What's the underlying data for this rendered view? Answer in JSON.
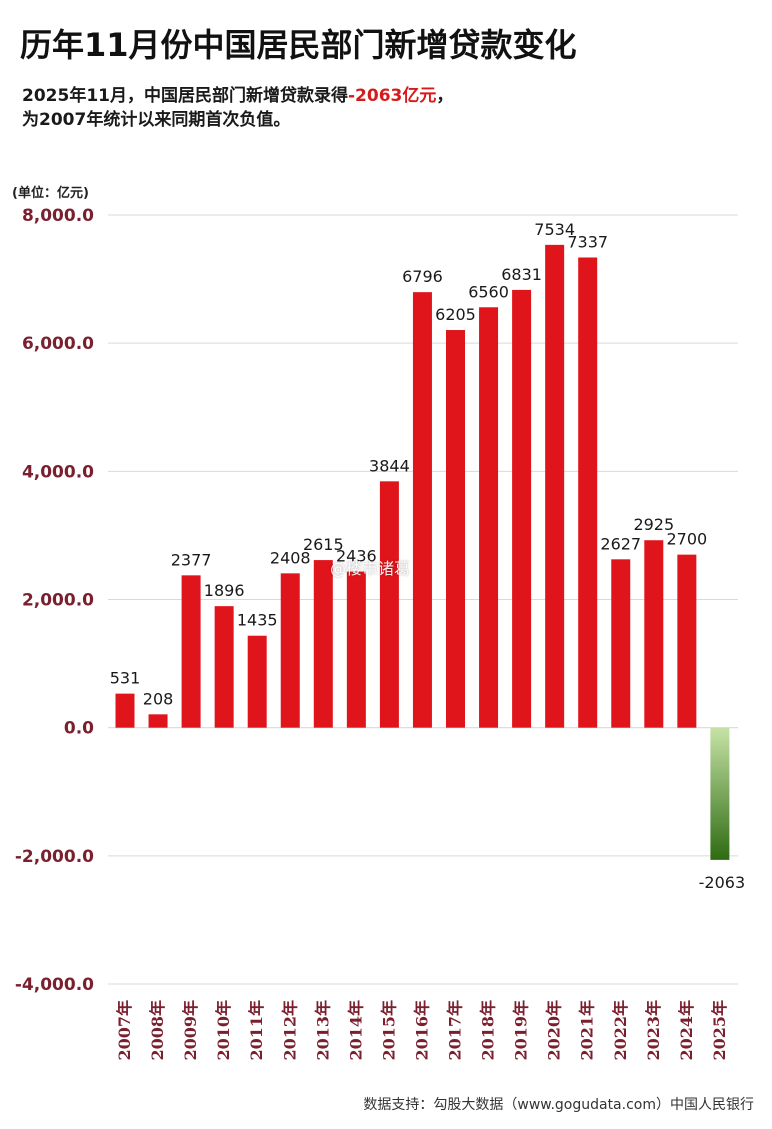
{
  "title": "历年11月份中国居民部门新增贷款变化",
  "subtitle": {
    "line1_prefix": "2025年11月，中国居民部门新增贷款录得",
    "line1_highlight": "-2063亿元",
    "line1_suffix": "，",
    "line2": "为2007年统计以来同期首次负值。"
  },
  "unit_label": "(单位：亿元)",
  "watermark": "@楼市诸葛",
  "source": "数据支持：勾股大数据（www.gogudata.com）中国人民银行",
  "colors": {
    "positive_bar": "#e0141b",
    "negative_bar_top": "#c6e3a6",
    "negative_bar_bottom": "#2f6b12",
    "highlight_text": "#d7191c",
    "tick_label": "#7a1f2e",
    "grid": "#d9d9d9"
  },
  "chart_data": {
    "type": "bar",
    "categories": [
      "2007年",
      "2008年",
      "2009年",
      "2010年",
      "2011年",
      "2012年",
      "2013年",
      "2014年",
      "2015年",
      "2016年",
      "2017年",
      "2018年",
      "2019年",
      "2020年",
      "2021年",
      "2022年",
      "2023年",
      "2024年",
      "2025年"
    ],
    "values": [
      531,
      208,
      2377,
      1896,
      1435,
      2408,
      2615,
      2436,
      3844,
      6796,
      6205,
      6560,
      6831,
      7534,
      7337,
      2627,
      2925,
      2700,
      -2063
    ],
    "data_labels": [
      "531",
      "208",
      "2377",
      "1896",
      "1435",
      "2408",
      "2615",
      "2436",
      "3844",
      "6796",
      "6205",
      "6560",
      "6831",
      "7534",
      "7337",
      "2627",
      "2925",
      "2700",
      "-2063"
    ],
    "yticks": [
      "8,000.0",
      "6,000.0",
      "4,000.0",
      "2,000.0",
      "0.0",
      "-2,000.0",
      "-4,000.0"
    ],
    "ytick_values": [
      8000,
      6000,
      4000,
      2000,
      0,
      -2000,
      -4000
    ],
    "ylim": [
      -4000,
      8000
    ],
    "grid": true
  }
}
